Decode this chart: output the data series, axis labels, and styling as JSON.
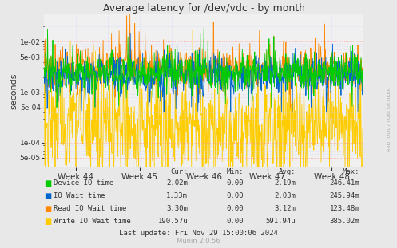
{
  "title": "Average latency for /dev/vdc - by month",
  "ylabel": "seconds",
  "background_color": "#e8e8e8",
  "plot_background": "#f0f0f0",
  "grid_color_major": "#ff9999",
  "grid_color_minor": "#ddddff",
  "x_weeks": [
    "Week 44",
    "Week 45",
    "Week 46",
    "Week 47",
    "Week 48"
  ],
  "ylim_min": 3.2e-05,
  "ylim_max": 0.035,
  "series": [
    {
      "label": "Device IO time",
      "color": "#00cc00",
      "zorder": 4
    },
    {
      "label": "IO Wait time",
      "color": "#0066cc",
      "zorder": 3
    },
    {
      "label": "Read IO Wait time",
      "color": "#ff8800",
      "zorder": 2
    },
    {
      "label": "Write IO Wait time",
      "color": "#ffcc00",
      "zorder": 1
    }
  ],
  "legend_headers": [
    "Cur:",
    "Min:",
    "Avg:",
    "Max:"
  ],
  "legend_data": [
    [
      "2.02m",
      "0.00",
      "2.19m",
      "246.41m"
    ],
    [
      "1.33m",
      "0.00",
      "2.03m",
      "245.94m"
    ],
    [
      "3.30m",
      "0.00",
      "3.12m",
      "123.48m"
    ],
    [
      "190.57u",
      "0.00",
      "591.94u",
      "385.02m"
    ]
  ],
  "footer": "Last update: Fri Nov 29 15:00:06 2024",
  "watermark": "Munin 2.0.56",
  "rrdtool_label": "RRDTOOL / TOBI OETIKER",
  "n_points": 800,
  "figsize": [
    4.97,
    3.11
  ],
  "dpi": 100
}
